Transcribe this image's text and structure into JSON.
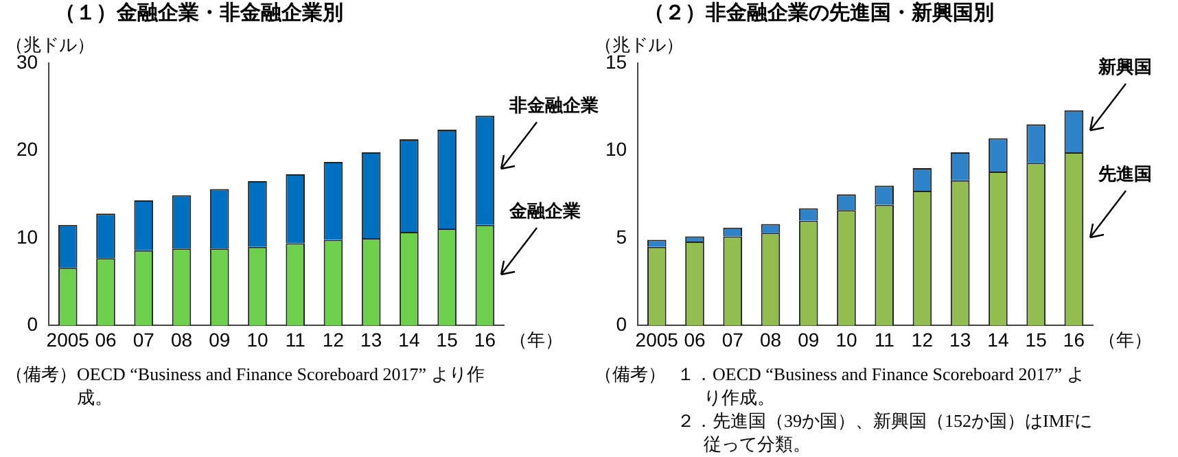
{
  "chart_data": [
    {
      "type": "bar",
      "title": "（１）金融企業・非金融企業別",
      "ylabel": "（兆ドル）",
      "xlabel": "（年）",
      "categories": [
        "2005",
        "06",
        "07",
        "08",
        "09",
        "10",
        "11",
        "12",
        "13",
        "14",
        "15",
        "16"
      ],
      "stacked": true,
      "ylim": [
        0,
        30
      ],
      "yticks": [
        0,
        10,
        20,
        30
      ],
      "series": [
        {
          "name": "金融企業",
          "color": "#6cd04c",
          "values": [
            6.6,
            7.7,
            8.6,
            8.8,
            8.8,
            9.0,
            9.4,
            9.8,
            10.0,
            10.7,
            11.1,
            11.5
          ]
        },
        {
          "name": "非金融企業",
          "color": "#0070c0",
          "values": [
            4.9,
            5.1,
            5.7,
            6.1,
            6.8,
            7.5,
            7.9,
            8.9,
            9.8,
            10.6,
            11.3,
            12.5
          ]
        }
      ],
      "annotations": [
        "（備考）OECD “Business and Finance Scoreboard 2017” より作成。"
      ]
    },
    {
      "type": "bar",
      "title": "（２）非金融企業の先進国・新興国別",
      "ylabel": "（兆ドル）",
      "xlabel": "（年）",
      "categories": [
        "2005",
        "06",
        "07",
        "08",
        "09",
        "10",
        "11",
        "12",
        "13",
        "14",
        "15",
        "16"
      ],
      "stacked": true,
      "ylim": [
        0,
        15
      ],
      "yticks": [
        0,
        5,
        10,
        15
      ],
      "series": [
        {
          "name": "先進国",
          "color": "#92bd4f",
          "values": [
            4.5,
            4.8,
            5.1,
            5.3,
            6.0,
            6.6,
            6.9,
            7.7,
            8.3,
            8.8,
            9.3,
            9.9
          ]
        },
        {
          "name": "新興国",
          "color": "#2f83c8",
          "values": [
            0.4,
            0.3,
            0.5,
            0.5,
            0.7,
            0.9,
            1.1,
            1.3,
            1.6,
            1.9,
            2.2,
            2.4
          ]
        }
      ],
      "annotations": [
        "（備考）",
        "１．OECD “Business and Finance Scoreboard 2017” より作成。",
        "２．先進国（39か国）、新興国（152か国）はIMFに従って分類。"
      ]
    }
  ]
}
